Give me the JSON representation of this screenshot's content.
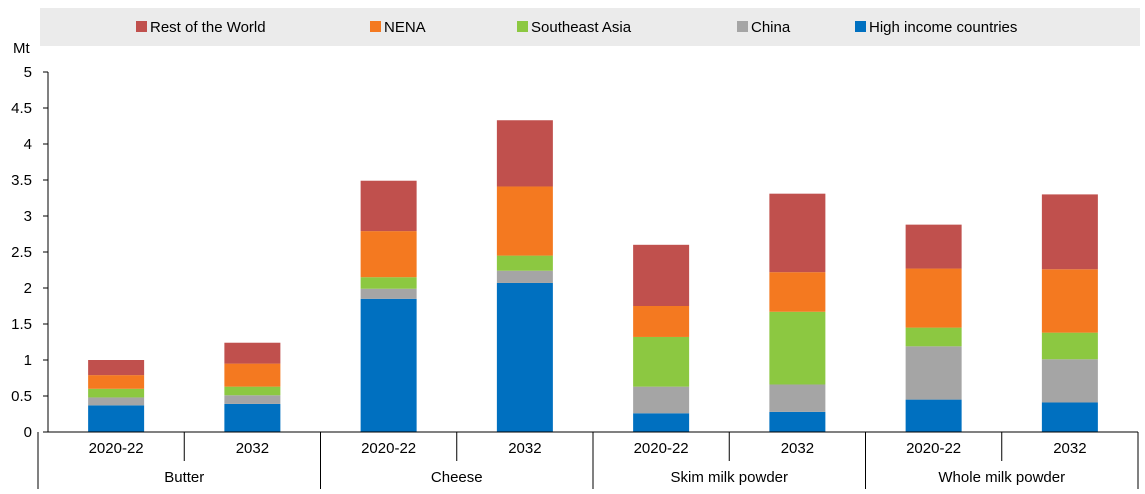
{
  "chart_data": {
    "type": "bar",
    "stacked": true,
    "ylabel": "Mt",
    "ylim": [
      0,
      5
    ],
    "yticks": [
      "0",
      "0.5",
      "1",
      "1.5",
      "2",
      "2.5",
      "3",
      "3.5",
      "4",
      "4.5",
      "5"
    ],
    "grid": false,
    "legend_position": "top",
    "groups": [
      "Butter",
      "Cheese",
      "Skim milk powder",
      "Whole milk powder"
    ],
    "periods": [
      "2020-22",
      "2032"
    ],
    "categories": [
      "Butter 2020-22",
      "Butter 2032",
      "Cheese 2020-22",
      "Cheese 2032",
      "Skim milk powder 2020-22",
      "Skim milk powder 2032",
      "Whole milk powder 2020-22",
      "Whole milk powder 2032"
    ],
    "series": [
      {
        "name": "High income countries",
        "color": "#0070c0",
        "values": [
          0.37,
          0.39,
          1.85,
          2.07,
          0.26,
          0.28,
          0.45,
          0.41
        ]
      },
      {
        "name": "China",
        "color": "#a5a5a5",
        "values": [
          0.11,
          0.12,
          0.14,
          0.17,
          0.37,
          0.38,
          0.74,
          0.6
        ]
      },
      {
        "name": "Southeast Asia",
        "color": "#8cc841",
        "values": [
          0.12,
          0.12,
          0.16,
          0.21,
          0.69,
          1.01,
          0.26,
          0.37
        ]
      },
      {
        "name": "NENA",
        "color": "#f47920",
        "values": [
          0.19,
          0.32,
          0.64,
          0.96,
          0.43,
          0.55,
          0.82,
          0.88
        ]
      },
      {
        "name": "Rest of the World",
        "color": "#c0504d",
        "values": [
          0.21,
          0.29,
          0.7,
          0.92,
          0.85,
          1.09,
          0.61,
          1.04
        ]
      }
    ],
    "legend_order": [
      "Rest of the World",
      "NENA",
      "Southeast Asia",
      "China",
      "High income countries"
    ]
  }
}
